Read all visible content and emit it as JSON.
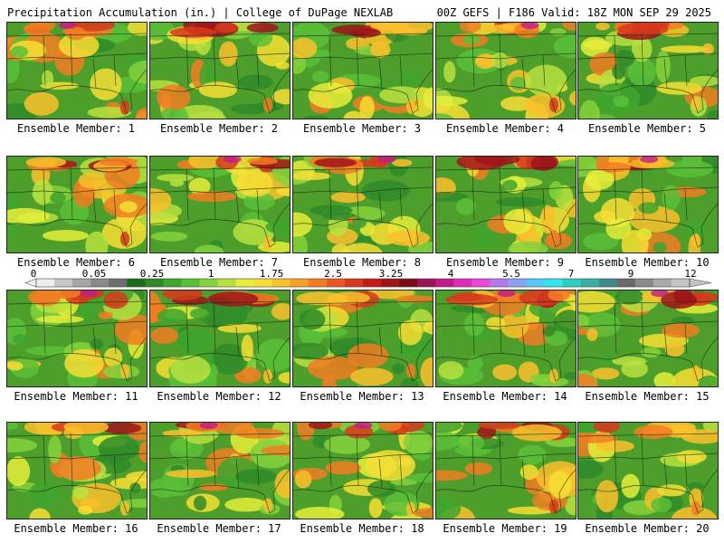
{
  "header": {
    "left": "Precipitation Accumulation (in.) | College of DuPage NEXLAB",
    "right": "00Z GEFS | F186 Valid: 18Z MON SEP 29 2025"
  },
  "scale": {
    "labels": [
      "0",
      "0.05",
      "0.25",
      "1",
      "1.75",
      "2.5",
      "3.25",
      "4",
      "5.5",
      "7",
      "9",
      "12"
    ],
    "colors": [
      "#eeeeee",
      "#c8c8c8",
      "#a6a6a6",
      "#8a8a8a",
      "#6e6e6e",
      "#1f6a1a",
      "#2e8a26",
      "#3ea52e",
      "#5abf38",
      "#86d23c",
      "#b8e040",
      "#e6ee3a",
      "#f6de34",
      "#fbc02c",
      "#f8a026",
      "#f27c22",
      "#e85820",
      "#d8381c",
      "#c41e18",
      "#a0141a",
      "#7a0c1a",
      "#9a1458",
      "#c21c8a",
      "#de2ab6",
      "#ea48d8",
      "#b478ee",
      "#8ea0f4",
      "#58c8f6",
      "#30e6ee",
      "#2ad0c4",
      "#3ab0a0",
      "#3c8c8a",
      "#6a6a6a",
      "#8a8a8a",
      "#aaaaaa",
      "#c4c4c4"
    ]
  },
  "members": [
    {
      "label": "Ensemble Member: 1"
    },
    {
      "label": "Ensemble Member: 2"
    },
    {
      "label": "Ensemble Member: 3"
    },
    {
      "label": "Ensemble Member: 4"
    },
    {
      "label": "Ensemble Member: 5"
    },
    {
      "label": "Ensemble Member: 6"
    },
    {
      "label": "Ensemble Member: 7"
    },
    {
      "label": "Ensemble Member: 8"
    },
    {
      "label": "Ensemble Member: 9"
    },
    {
      "label": "Ensemble Member: 10"
    },
    {
      "label": "Ensemble Member: 11"
    },
    {
      "label": "Ensemble Member: 12"
    },
    {
      "label": "Ensemble Member: 13"
    },
    {
      "label": "Ensemble Member: 14"
    },
    {
      "label": "Ensemble Member: 15"
    },
    {
      "label": "Ensemble Member: 16"
    },
    {
      "label": "Ensemble Member: 17"
    },
    {
      "label": "Ensemble Member: 18"
    },
    {
      "label": "Ensemble Member: 19"
    },
    {
      "label": "Ensemble Member: 20"
    }
  ]
}
